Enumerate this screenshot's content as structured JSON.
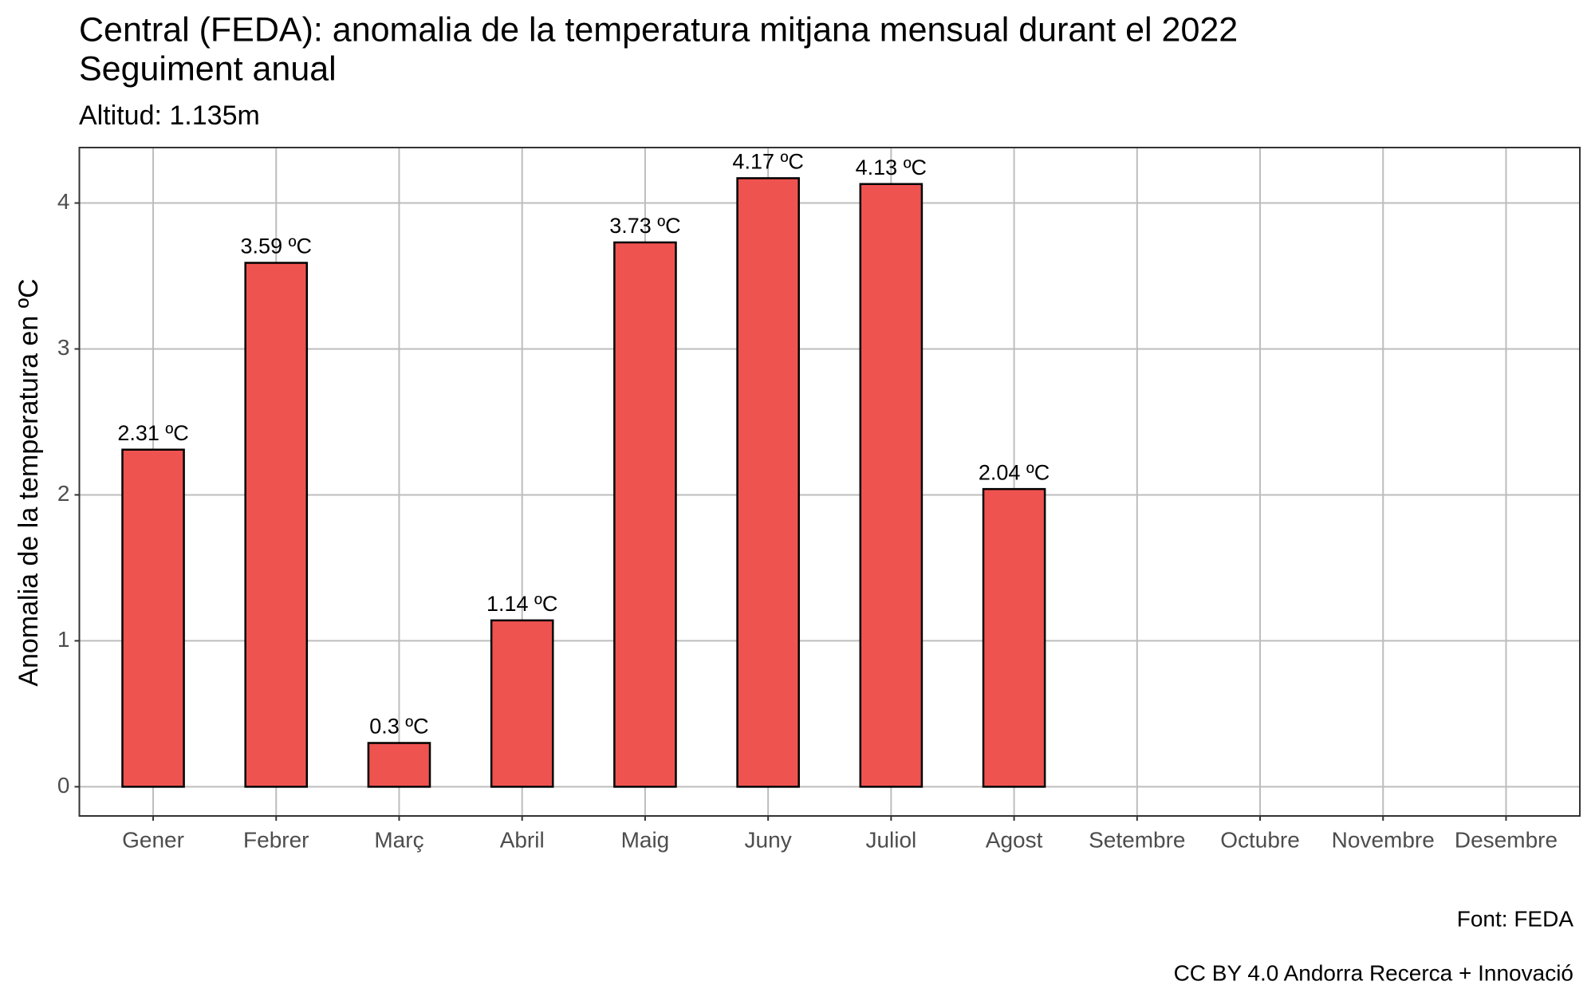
{
  "chart_data": {
    "type": "bar",
    "title": "Central (FEDA): anomalia de la temperatura mitjana mensual durant el 2022",
    "title2": "Seguiment anual",
    "subtitle": "Altitud: 1.135m",
    "y_label": "Anomalia de la temperatura en ºC",
    "caption": "Font: FEDA",
    "caption2": "CC BY 4.0 Andorra Recerca + Innovació",
    "categories": [
      "Gener",
      "Febrer",
      "Març",
      "Abril",
      "Maig",
      "Juny",
      "Juliol",
      "Agost",
      "Setembre",
      "Octubre",
      "Novembre",
      "Desembre"
    ],
    "values": [
      2.31,
      3.59,
      0.3,
      1.14,
      3.73,
      4.17,
      4.13,
      2.04,
      null,
      null,
      null,
      null
    ],
    "value_labels": [
      "2.31 ºC",
      "3.59 ºC",
      "0.3 ºC",
      "1.14 ºC",
      "3.73 ºC",
      "4.17 ºC",
      "4.13 ºC",
      "2.04 ºC",
      null,
      null,
      null,
      null
    ],
    "color": "#ef5350",
    "ylim": [
      -0.2,
      4.38
    ],
    "yticks": [
      0,
      1,
      2,
      3,
      4
    ],
    "grid": true
  }
}
